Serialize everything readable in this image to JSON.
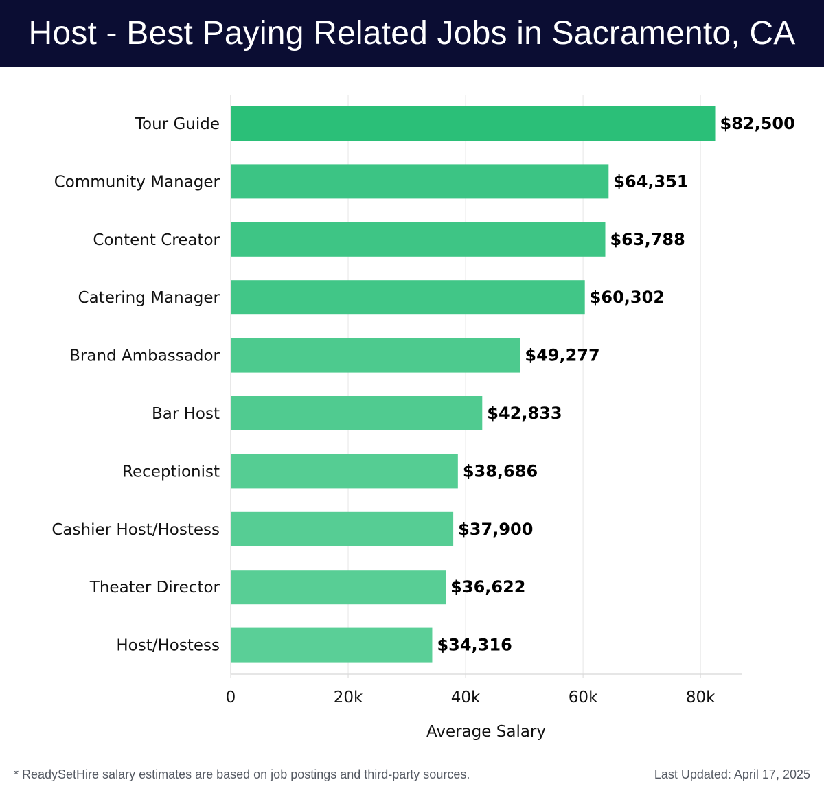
{
  "page": {
    "title": "Host - Best Paying Related Jobs in Sacramento, CA",
    "footnote": "* ReadySetHire salary estimates are based on job postings and third-party sources.",
    "last_updated": "Last Updated: April 17, 2025",
    "header_color": "#0b0d33"
  },
  "chart_data": {
    "type": "bar",
    "orientation": "horizontal",
    "categories": [
      "Tour Guide",
      "Community Manager",
      "Content Creator",
      "Catering Manager",
      "Brand Ambassador",
      "Bar Host",
      "Receptionist",
      "Cashier Host/Hostess",
      "Theater Director",
      "Host/Hostess"
    ],
    "values": [
      82500,
      64351,
      63788,
      60302,
      49277,
      42833,
      38686,
      37900,
      36622,
      34316
    ],
    "value_labels": [
      "$82,500",
      "$64,351",
      "$63,788",
      "$60,302",
      "$49,277",
      "$42,833",
      "$38,686",
      "$37,900",
      "$36,622",
      "$34,316"
    ],
    "bar_colors": [
      "#2bbf78",
      "#3cc484",
      "#3ec585",
      "#41c687",
      "#4dca8e",
      "#50cb90",
      "#55cd93",
      "#56cd94",
      "#58ce95",
      "#5acf97"
    ],
    "xlabel": "Average Salary",
    "ylabel": "",
    "xlim": [
      0,
      87000
    ],
    "x_ticks": [
      0,
      20000,
      40000,
      60000,
      80000
    ],
    "x_tick_labels": [
      "0",
      "20k",
      "40k",
      "60k",
      "80k"
    ],
    "grid": "vertical",
    "legend": "none"
  }
}
